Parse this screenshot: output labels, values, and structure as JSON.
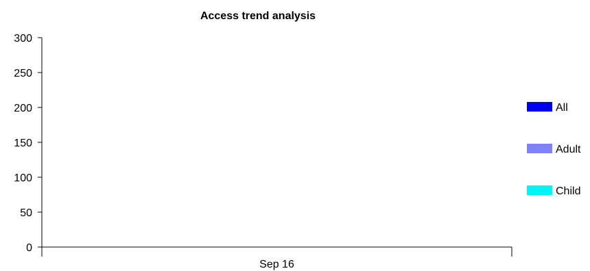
{
  "chart_data": {
    "type": "bar",
    "title": "Access trend analysis",
    "categories": [
      "Sep 16"
    ],
    "series": [
      {
        "name": "All",
        "values": [
          0
        ],
        "color": "#0000ee"
      },
      {
        "name": "Adult",
        "values": [
          0
        ],
        "color": "#8080f7"
      },
      {
        "name": "Child",
        "values": [
          0
        ],
        "color": "#00f5f5"
      }
    ],
    "yticks": [
      0,
      50,
      100,
      150,
      200,
      250,
      300
    ],
    "ylim": [
      0,
      300
    ],
    "grid": false,
    "legend_position": "right"
  }
}
